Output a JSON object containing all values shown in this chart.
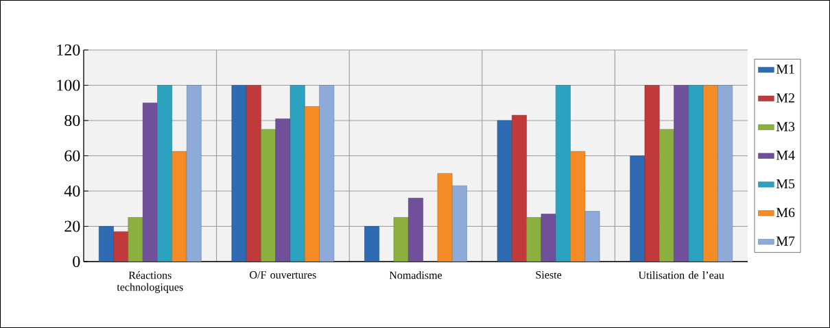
{
  "chart_data": {
    "type": "bar",
    "categories": [
      "Réactions technologiques",
      "O/F ouvertures",
      "Nomadisme",
      "Sieste",
      "Utilisation de l’eau"
    ],
    "series": [
      {
        "name": "M1",
        "color": "#2e6bb3",
        "values": [
          20,
          100,
          20,
          80,
          60
        ]
      },
      {
        "name": "M2",
        "color": "#c0393b",
        "values": [
          17,
          100,
          0,
          83,
          100
        ]
      },
      {
        "name": "M3",
        "color": "#8cb040",
        "values": [
          25,
          75,
          25,
          25,
          75
        ]
      },
      {
        "name": "M4",
        "color": "#70509a",
        "values": [
          90,
          81,
          36,
          27,
          100
        ]
      },
      {
        "name": "M5",
        "color": "#2ba3c0",
        "values": [
          100,
          100,
          0,
          100,
          100
        ]
      },
      {
        "name": "M6",
        "color": "#f58b25",
        "values": [
          62.5,
          88,
          50,
          62.5,
          100
        ]
      },
      {
        "name": "M7",
        "color": "#8eaad8",
        "values": [
          100,
          100,
          43,
          28.5,
          100
        ]
      }
    ],
    "ylim": [
      0,
      120
    ],
    "yticks": [
      0,
      20,
      40,
      60,
      80,
      100,
      120
    ],
    "grid": true,
    "legend": "right"
  }
}
